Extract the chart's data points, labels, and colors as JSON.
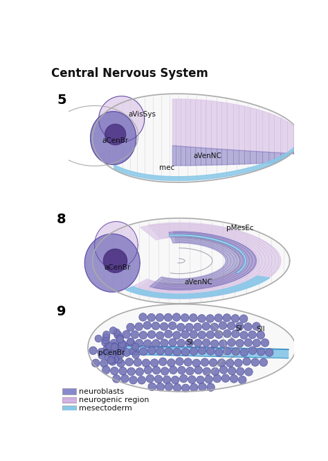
{
  "title": "Central Nervous System",
  "title_fontsize": 12,
  "title_fontweight": "bold",
  "bg_color": "#ffffff",
  "fig_width": 4.74,
  "fig_height": 6.65,
  "dpi": 100,
  "panel_labels": [
    "5",
    "8",
    "9"
  ],
  "panel_label_fontsize": 14,
  "panel_label_fontweight": "bold",
  "colors": {
    "neuroblasts": "#8078c0",
    "neuroblasts_dark": "#5a48a0",
    "neuroblasts_fill": "#9088cc",
    "neurogenic": "#dcc8e8",
    "neurogenic_stripe": "#c8a8d8",
    "neurogenic_dark": "#b898c8",
    "mesectoderm": "#88c8e8",
    "mesectoderm_dark": "#4898c8",
    "mesectoderm_light": "#a8d8f0",
    "embryo_outline": "#aaaaaa",
    "embryo_fill": "#f8f8f8",
    "head_outline": "#999999",
    "grid_line": "#c8c8d8",
    "label_color": "#111111",
    "dark_purple": "#4a3080",
    "mid_purple": "#7060a8",
    "sphere_dark": "#5050a0",
    "sphere_mid": "#7878b8",
    "sphere_light": "#9898c8"
  },
  "legend_items": [
    {
      "label": "neuroblasts",
      "color": "#8888cc"
    },
    {
      "label": "neurogenic region",
      "color": "#ddc8ee"
    },
    {
      "label": "mesectoderm",
      "color": "#88c8e8"
    }
  ]
}
